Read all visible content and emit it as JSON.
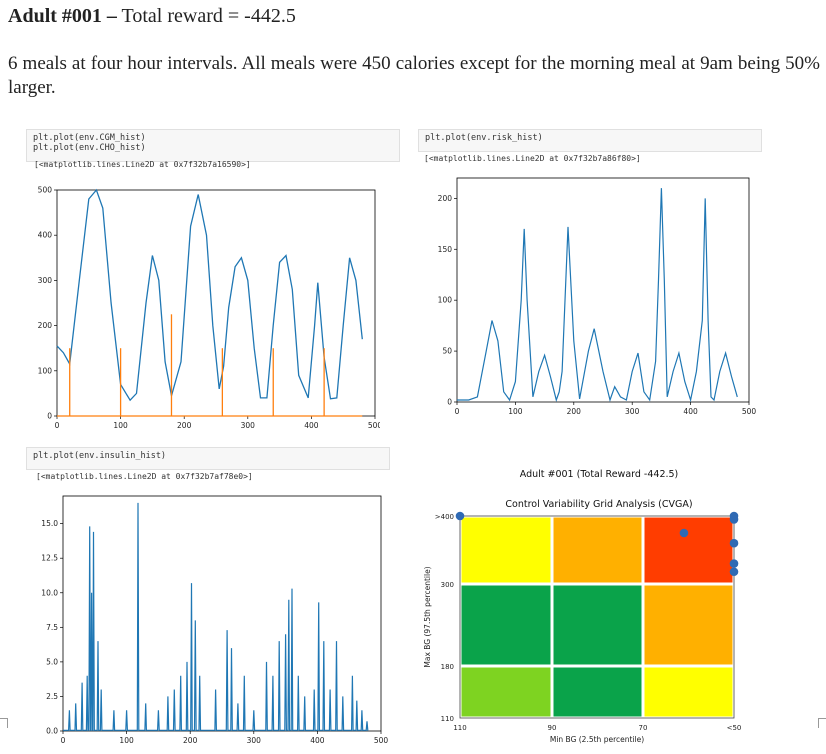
{
  "header": {
    "title_bold": "Adult #001 –",
    "title_rest": " Total reward = -442.5",
    "description": "6 meals at four hour intervals. All meals were 450 calories except for the morning meal at 9am being 50% larger."
  },
  "cells": {
    "cgm": {
      "code": [
        "plt.plot(env.CGM_hist)",
        "plt.plot(env.CHO_hist)"
      ],
      "output": "[<matplotlib.lines.Line2D at 0x7f32b7a16590>]"
    },
    "risk": {
      "code": [
        "plt.plot(env.risk_hist)"
      ],
      "output": "[<matplotlib.lines.Line2D at 0x7f32b7a86f80>]"
    },
    "insulin": {
      "code": [
        "plt.plot(env.insulin_hist)"
      ],
      "output": "[<matplotlib.lines.Line2D at 0x7f32b7af78e0>]"
    }
  },
  "colors": {
    "series_blue": "#1f77b4",
    "series_orange": "#ff7f0e",
    "cvga_green": "#0aa34a",
    "cvga_lightgreen": "#7ed321",
    "cvga_yellow": "#ffff00",
    "cvga_orange": "#ffb000",
    "cvga_red": "#ff3d00"
  },
  "chart_data": [
    {
      "type": "line",
      "name_in_notebook": "CGM and CHO history",
      "xlim": [
        0,
        500
      ],
      "ylim": [
        0,
        500
      ],
      "xticks": [
        "0",
        "100",
        "200",
        "300",
        "400",
        "500"
      ],
      "yticks": [
        "0",
        "100",
        "200",
        "300",
        "400",
        "500"
      ],
      "series": [
        {
          "color": "#1f77b4",
          "x": [
            0,
            10,
            20,
            35,
            50,
            62,
            72,
            85,
            100,
            115,
            125,
            140,
            150,
            160,
            170,
            180,
            195,
            210,
            222,
            235,
            245,
            255,
            262,
            270,
            280,
            290,
            300,
            310,
            320,
            330,
            340,
            350,
            360,
            370,
            380,
            395,
            405,
            410,
            420,
            430,
            440,
            450,
            460,
            470,
            480
          ],
          "y": [
            155,
            140,
            115,
            300,
            480,
            500,
            460,
            250,
            70,
            35,
            50,
            250,
            355,
            300,
            120,
            45,
            120,
            420,
            490,
            400,
            200,
            60,
            110,
            240,
            330,
            350,
            300,
            150,
            40,
            40,
            200,
            340,
            355,
            280,
            90,
            40,
            200,
            295,
            130,
            38,
            40,
            200,
            350,
            300,
            170
          ]
        },
        {
          "color": "#ff7f0e",
          "type": "spikes",
          "x": [
            20,
            100,
            180,
            260,
            340,
            420
          ],
          "y": [
            150,
            150,
            225,
            150,
            150,
            150
          ]
        }
      ]
    },
    {
      "type": "line",
      "name_in_notebook": "Risk history",
      "xlim": [
        0,
        500
      ],
      "ylim": [
        0,
        220
      ],
      "xticks": [
        "0",
        "100",
        "200",
        "300",
        "400",
        "500"
      ],
      "yticks": [
        "0",
        "50",
        "100",
        "150",
        "200"
      ],
      "series": [
        {
          "color": "#1f77b4",
          "x": [
            0,
            20,
            35,
            50,
            60,
            70,
            80,
            90,
            100,
            110,
            115,
            120,
            130,
            140,
            150,
            160,
            170,
            175,
            180,
            190,
            200,
            210,
            225,
            235,
            250,
            262,
            270,
            280,
            290,
            300,
            310,
            320,
            330,
            340,
            345,
            350,
            355,
            360,
            370,
            380,
            390,
            400,
            410,
            420,
            425,
            430,
            435,
            440,
            450,
            460,
            470,
            480
          ],
          "y": [
            2,
            2,
            5,
            50,
            80,
            60,
            10,
            2,
            20,
            100,
            170,
            100,
            5,
            30,
            46,
            25,
            2,
            10,
            30,
            172,
            60,
            3,
            50,
            72,
            30,
            2,
            15,
            5,
            2,
            30,
            48,
            10,
            2,
            40,
            120,
            210,
            120,
            5,
            30,
            48,
            20,
            2,
            30,
            80,
            200,
            80,
            5,
            2,
            30,
            48,
            25,
            5
          ]
        }
      ]
    },
    {
      "type": "line",
      "name_in_notebook": "Insulin history",
      "xlim": [
        0,
        500
      ],
      "ylim": [
        0,
        17
      ],
      "xticks": [
        "0",
        "100",
        "200",
        "300",
        "400",
        "500"
      ],
      "yticks": [
        "0.0",
        "2.5",
        "5.0",
        "7.5",
        "10.0",
        "12.5",
        "15.0"
      ],
      "peaks": [
        {
          "x": 10,
          "y": 1.5
        },
        {
          "x": 20,
          "y": 2.0
        },
        {
          "x": 30,
          "y": 3.5
        },
        {
          "x": 38,
          "y": 4.0
        },
        {
          "x": 42,
          "y": 14.8
        },
        {
          "x": 45,
          "y": 10.0
        },
        {
          "x": 48,
          "y": 14.4
        },
        {
          "x": 55,
          "y": 6.5
        },
        {
          "x": 60,
          "y": 3.0
        },
        {
          "x": 80,
          "y": 1.5
        },
        {
          "x": 100,
          "y": 1.5
        },
        {
          "x": 118,
          "y": 16.5
        },
        {
          "x": 130,
          "y": 2.0
        },
        {
          "x": 150,
          "y": 1.5
        },
        {
          "x": 165,
          "y": 2.5
        },
        {
          "x": 175,
          "y": 3.0
        },
        {
          "x": 185,
          "y": 4.0
        },
        {
          "x": 195,
          "y": 5.0
        },
        {
          "x": 202,
          "y": 10.7
        },
        {
          "x": 208,
          "y": 8.0
        },
        {
          "x": 215,
          "y": 4.0
        },
        {
          "x": 240,
          "y": 3.0
        },
        {
          "x": 258,
          "y": 7.3
        },
        {
          "x": 265,
          "y": 6.0
        },
        {
          "x": 275,
          "y": 2.0
        },
        {
          "x": 285,
          "y": 4.0
        },
        {
          "x": 300,
          "y": 1.5
        },
        {
          "x": 320,
          "y": 5.0
        },
        {
          "x": 330,
          "y": 4.0
        },
        {
          "x": 340,
          "y": 6.5
        },
        {
          "x": 350,
          "y": 7.0
        },
        {
          "x": 355,
          "y": 9.5
        },
        {
          "x": 360,
          "y": 10.3
        },
        {
          "x": 370,
          "y": 4.0
        },
        {
          "x": 380,
          "y": 2.5
        },
        {
          "x": 395,
          "y": 3.0
        },
        {
          "x": 402,
          "y": 9.3
        },
        {
          "x": 410,
          "y": 6.5
        },
        {
          "x": 420,
          "y": 3.0
        },
        {
          "x": 430,
          "y": 6.5
        },
        {
          "x": 440,
          "y": 2.5
        },
        {
          "x": 455,
          "y": 4.0
        },
        {
          "x": 462,
          "y": 2.2
        },
        {
          "x": 470,
          "y": 1.5
        },
        {
          "x": 478,
          "y": 0.7
        }
      ]
    },
    {
      "type": "scatter",
      "title": "Adult #001 (Total Reward -442.5)",
      "subtitle": "Control Variability Grid Analysis (CVGA)",
      "xlabel": "Min BG (2.5th percentile)",
      "ylabel": "Max BG (97.5th percentile)",
      "x_ticks": [
        "110",
        "90",
        "70",
        "<50"
      ],
      "y_ticks": [
        ">400",
        "300",
        "180",
        "110"
      ],
      "zones": [
        [
          "yellow",
          "orange",
          "red"
        ],
        [
          "green",
          "green",
          "orange"
        ],
        [
          "lightgreen",
          "green",
          "yellow"
        ]
      ],
      "points_normalized_axes": [
        {
          "min_bg": 110,
          "max_bg": 400
        },
        {
          "min_bg": 61,
          "max_bg": 375
        },
        {
          "min_bg": 50,
          "max_bg": 400
        },
        {
          "min_bg": 50,
          "max_bg": 395
        },
        {
          "min_bg": 50,
          "max_bg": 360
        },
        {
          "min_bg": 50,
          "max_bg": 330
        },
        {
          "min_bg": 50,
          "max_bg": 318
        }
      ]
    }
  ]
}
